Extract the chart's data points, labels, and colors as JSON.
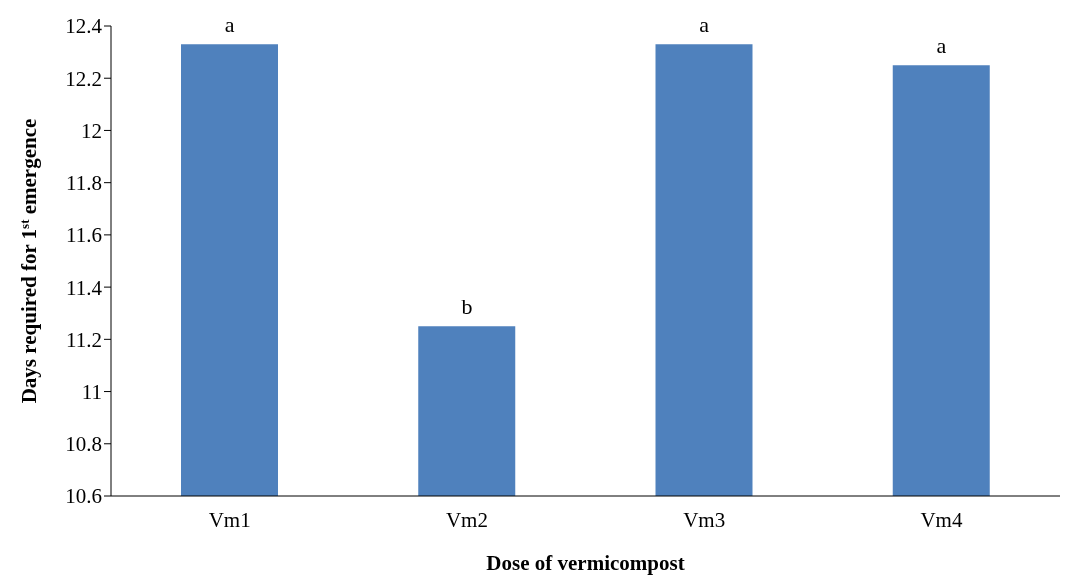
{
  "chart_data": {
    "type": "bar",
    "xlabel": "Dose of vermicompost",
    "ylabel": "Days required for 1$^{st}$ emergence",
    "categories": [
      "Vm1",
      "Vm2",
      "Vm3",
      "Vm4"
    ],
    "values": [
      12.33,
      11.25,
      12.33,
      12.25
    ],
    "color": "#4f81bd",
    "ylim": [
      10.6,
      12.4
    ],
    "yticks": [
      10.6,
      10.8,
      11,
      11.2,
      11.4,
      11.6,
      11.8,
      12,
      12.2,
      12.4
    ],
    "grid": false,
    "legend": false,
    "annotations": [
      {
        "text": "a",
        "x": "Vm1",
        "y": 12.33
      },
      {
        "text": "b",
        "x": "Vm2",
        "y": 11.25
      },
      {
        "text": "a",
        "x": "Vm3",
        "y": 12.33
      },
      {
        "text": "a",
        "x": "Vm4",
        "y": 12.25
      }
    ]
  }
}
